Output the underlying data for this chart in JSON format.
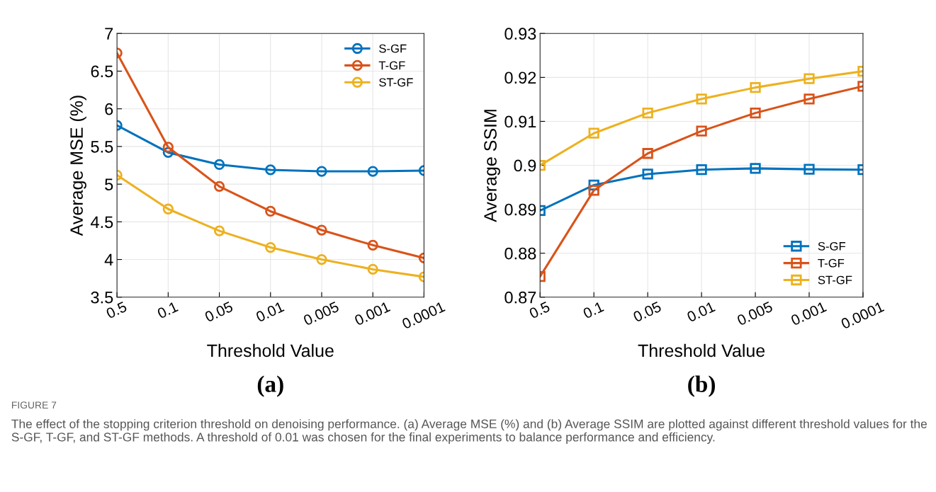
{
  "chart_data": [
    {
      "type": "line",
      "xlabel": "Threshold Value",
      "ylabel": "Average MSE (%)",
      "categories": [
        "0.5",
        "0.1",
        "0.05",
        "0.01",
        "0.005",
        "0.001",
        "0.0001"
      ],
      "ylim": [
        3.5,
        7
      ],
      "yticks": [
        {
          "value": 3.5,
          "label": "3.5"
        },
        {
          "value": 4,
          "label": "4"
        },
        {
          "value": 4.5,
          "label": "4.5"
        },
        {
          "value": 5,
          "label": "5"
        },
        {
          "value": 5.5,
          "label": "5.5"
        },
        {
          "value": 6,
          "label": "6"
        },
        {
          "value": 6.5,
          "label": "6.5"
        },
        {
          "value": 7,
          "label": "7"
        }
      ],
      "grid": true,
      "legend": "top right",
      "marker": "circle",
      "line_style": "solid",
      "series": [
        {
          "name": "S-GF",
          "color": "#0072bd",
          "values": [
            5.78,
            5.42,
            5.26,
            5.19,
            5.17,
            5.17,
            5.18
          ]
        },
        {
          "name": "T-GF",
          "color": "#d95319",
          "values": [
            6.74,
            5.49,
            4.97,
            4.64,
            4.39,
            4.19,
            4.02
          ]
        },
        {
          "name": "ST-GF",
          "color": "#edb120",
          "values": [
            5.12,
            4.67,
            4.38,
            4.16,
            4.0,
            3.87,
            3.77
          ]
        }
      ],
      "annotations": [
        "(a)",
        "FIGURE 7",
        "The effect of the stopping criterion threshold on denoising performance. (a) Average MSE (%) and (b) Average SSIM are plotted against different threshold values for the S-GF, T-GF, and ST-GF methods. A threshold of 0.01 was chosen for the final experiments to balance performance and efficiency."
      ]
    },
    {
      "type": "line",
      "xlabel": "Threshold Value",
      "ylabel": "Average SSIM",
      "categories": [
        "0.5",
        "0.1",
        "0.05",
        "0.01",
        "0.005",
        "0.001",
        "0.0001"
      ],
      "ylim": [
        0.87,
        0.93
      ],
      "yticks": [
        0.87,
        0.88,
        0.89,
        {
          "value": 0.9,
          "label": "0.9"
        },
        0.91,
        0.92,
        0.93
      ],
      "grid": true,
      "legend": "bottom right",
      "marker": "square",
      "line_style": "solid",
      "series": [
        {
          "name": "S-GF",
          "color": "#0072bd",
          "values": [
            0.8897,
            0.8955,
            0.898,
            0.899,
            0.8993,
            0.8991,
            0.899
          ]
        },
        {
          "name": "T-GF",
          "color": "#d95319",
          "values": [
            0.8747,
            0.8943,
            0.9027,
            0.9078,
            0.9119,
            0.9151,
            0.918
          ]
        },
        {
          "name": "ST-GF",
          "color": "#edb120",
          "values": [
            0.9,
            0.9073,
            0.9119,
            0.9151,
            0.9177,
            0.9197,
            0.9214
          ]
        }
      ],
      "annotations": [
        "(b)"
      ]
    }
  ]
}
